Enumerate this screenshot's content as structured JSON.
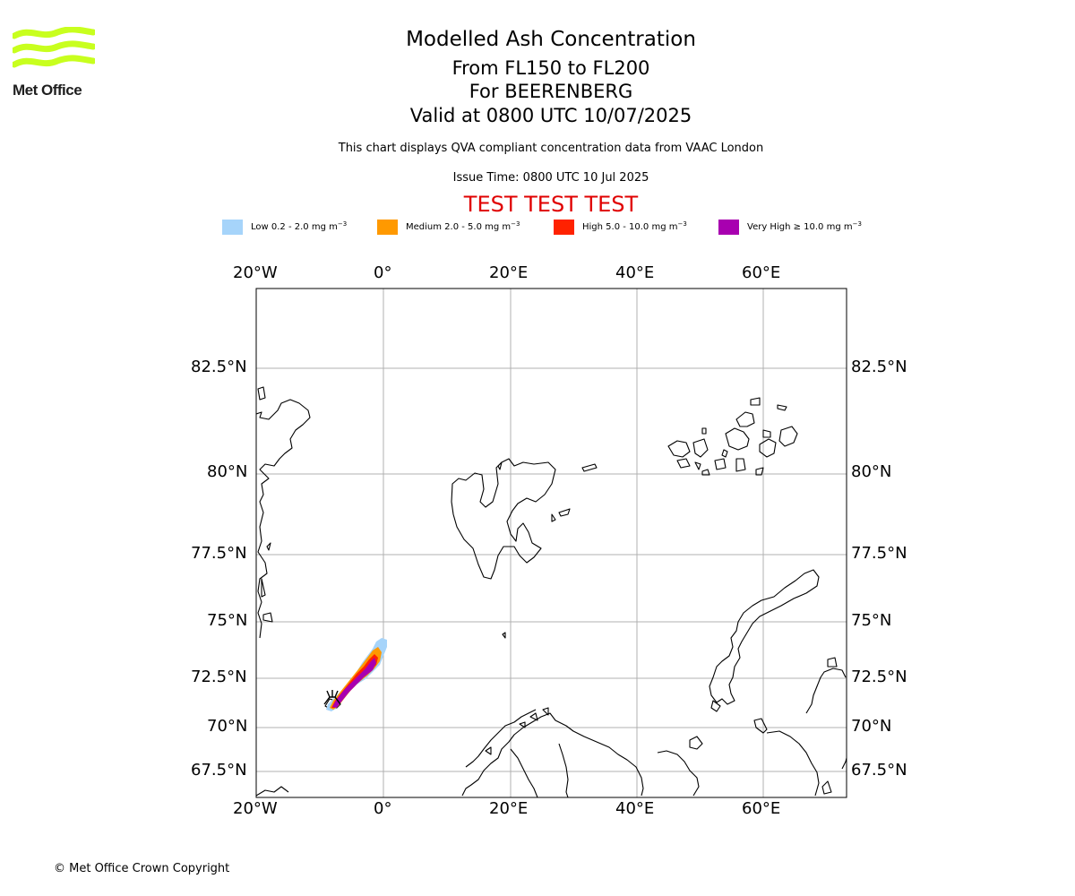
{
  "header": {
    "logo_text": "Met Office",
    "title": "Modelled Ash Concentration",
    "level_range": "From FL150 to FL200",
    "volcano": "For BEERENBERG",
    "valid_time": "Valid at 0800 UTC 10/07/2025",
    "compliance_note": "This chart displays QVA compliant concentration data from VAAC London",
    "issue_time": "Issue Time: 0800 UTC 10 Jul 2025",
    "test_banner": "TEST TEST TEST"
  },
  "legend": [
    {
      "label": "Low 0.2 - 2.0 mg m",
      "exp": "−3",
      "color": "#a6d4fa"
    },
    {
      "label": "Medium 2.0 - 5.0 mg m",
      "exp": "−3",
      "color": "#ff9900"
    },
    {
      "label": "High 5.0 - 10.0 mg m",
      "exp": "−3",
      "color": "#ff2200"
    },
    {
      "label": "Very High  ≥  10.0 mg m",
      "exp": "−3",
      "color": "#a800b0"
    }
  ],
  "map": {
    "lon_ticks": [
      "20°W",
      "0°",
      "20°E",
      "40°E",
      "60°E"
    ],
    "lat_ticks": [
      "82.5°N",
      "80°N",
      "77.5°N",
      "75°N",
      "72.5°N",
      "70°N",
      "67.5°N"
    ],
    "gridlines": true,
    "volcano_marker": "volcano-symbol"
  },
  "footer": {
    "copyright": "© Met Office Crown Copyright"
  }
}
